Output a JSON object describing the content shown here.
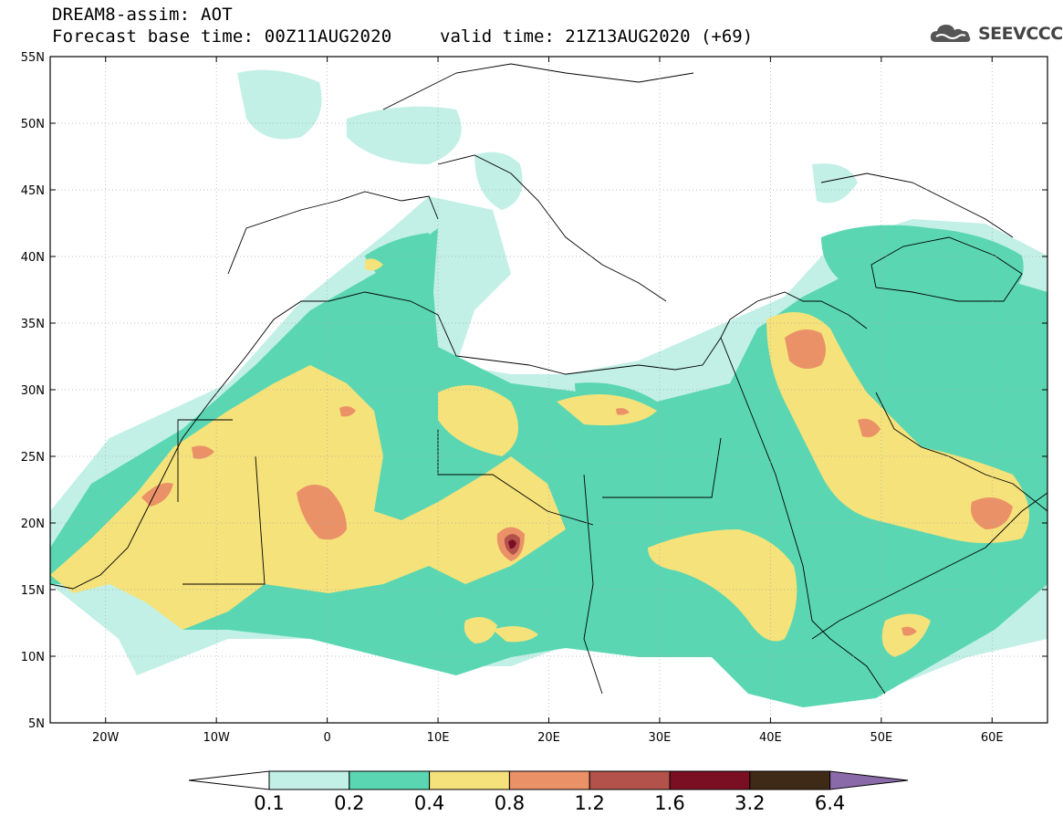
{
  "title": {
    "line1": "DREAM8-assim: AOT",
    "line2": "Forecast base time: 00Z11AUG2020",
    "valid": "valid time: 21Z13AUG2020 (+69)"
  },
  "logo": {
    "text": "SEEVCCC",
    "icon": "cloud-logo-icon"
  },
  "map": {
    "lon_range": [
      -25,
      65
    ],
    "lat_range": [
      5,
      55
    ],
    "lat_ticks": [
      "5N",
      "10N",
      "15N",
      "20N",
      "25N",
      "30N",
      "35N",
      "40N",
      "45N",
      "50N",
      "55N"
    ],
    "lon_ticks": [
      "20W",
      "10W",
      "0",
      "10E",
      "20E",
      "30E",
      "40E",
      "50E",
      "60E"
    ]
  },
  "colorbar": {
    "labels": [
      "0.1",
      "0.2",
      "0.4",
      "0.8",
      "1.2",
      "1.6",
      "3.2",
      "6.4"
    ],
    "colors": [
      "#ffffff",
      "#c2f0e6",
      "#5ad7b2",
      "#f5e27a",
      "#eb9168",
      "#b3524b",
      "#7a0f24",
      "#3f2a17",
      "#8a6aa8"
    ]
  }
}
